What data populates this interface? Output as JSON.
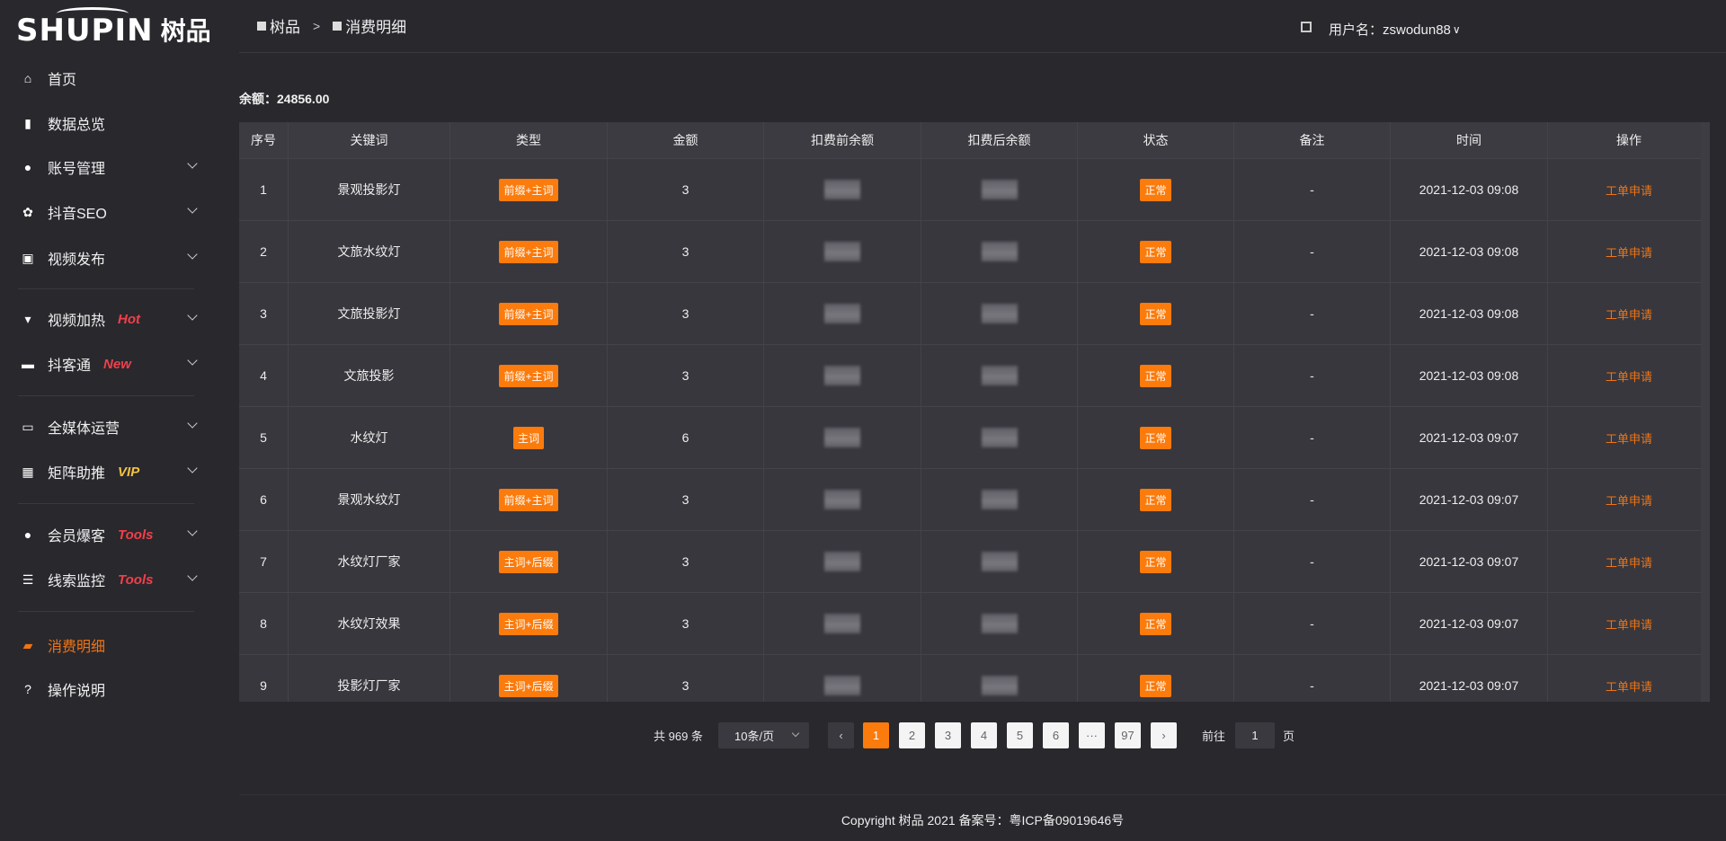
{
  "brand": {
    "logo_en": "SHUPIN",
    "logo_cn": "树品"
  },
  "sidebar": {
    "items": [
      {
        "label": "首页",
        "icon": "home-icon"
      },
      {
        "label": "数据总览",
        "icon": "bar-chart-icon"
      },
      {
        "label": "账号管理",
        "icon": "user-icon"
      },
      {
        "label": "抖音SEO",
        "icon": "gear-icon"
      },
      {
        "label": "视频发布",
        "icon": "camera-icon"
      },
      {
        "label": "视频加热",
        "icon": "flag-icon",
        "tag": "Hot"
      },
      {
        "label": "抖客通",
        "icon": "chat-icon",
        "tag": "New"
      },
      {
        "label": "全媒体运营",
        "icon": "monitor-icon"
      },
      {
        "label": "矩阵助推",
        "icon": "grid-icon",
        "tag": "VIP"
      },
      {
        "label": "会员爆客",
        "icon": "user-icon",
        "tag": "Tools"
      },
      {
        "label": "线索监控",
        "icon": "sliders-icon",
        "tag": "Tools"
      },
      {
        "label": "消费明细",
        "icon": "wallet-icon"
      },
      {
        "label": "操作说明",
        "icon": "question-icon"
      }
    ],
    "active": "消费明细"
  },
  "header": {
    "breadcrumb": [
      "树品",
      "消费明细"
    ],
    "sep": ">",
    "user": "用户名：zswodun88"
  },
  "balance": "余额：24856.00",
  "table": {
    "columns": [
      "序号",
      "关键词",
      "类型",
      "金额",
      "扣费前余额",
      "扣费后余额",
      "状态",
      "备注",
      "时间",
      "操作"
    ],
    "rows": [
      {
        "no": "1",
        "kw": "景观投影灯",
        "type": "前缀+主词",
        "amt": "3",
        "status": "正常",
        "note": "-",
        "time": "2021-12-03 09:08",
        "op": "工单申请"
      },
      {
        "no": "2",
        "kw": "文旅水纹灯",
        "type": "前缀+主词",
        "amt": "3",
        "status": "正常",
        "note": "-",
        "time": "2021-12-03 09:08",
        "op": "工单申请"
      },
      {
        "no": "3",
        "kw": "文旅投影灯",
        "type": "前缀+主词",
        "amt": "3",
        "status": "正常",
        "note": "-",
        "time": "2021-12-03 09:08",
        "op": "工单申请"
      },
      {
        "no": "4",
        "kw": "文旅投影",
        "type": "前缀+主词",
        "amt": "3",
        "status": "正常",
        "note": "-",
        "time": "2021-12-03 09:08",
        "op": "工单申请"
      },
      {
        "no": "5",
        "kw": "水纹灯",
        "type": "主词",
        "amt": "6",
        "status": "正常",
        "note": "-",
        "time": "2021-12-03 09:07",
        "op": "工单申请"
      },
      {
        "no": "6",
        "kw": "景观水纹灯",
        "type": "前缀+主词",
        "amt": "3",
        "status": "正常",
        "note": "-",
        "time": "2021-12-03 09:07",
        "op": "工单申请"
      },
      {
        "no": "7",
        "kw": "水纹灯厂家",
        "type": "主词+后缀",
        "amt": "3",
        "status": "正常",
        "note": "-",
        "time": "2021-12-03 09:07",
        "op": "工单申请"
      },
      {
        "no": "8",
        "kw": "水纹灯效果",
        "type": "主词+后缀",
        "amt": "3",
        "status": "正常",
        "note": "-",
        "time": "2021-12-03 09:07",
        "op": "工单申请"
      },
      {
        "no": "9",
        "kw": "投影灯厂家",
        "type": "主词+后缀",
        "amt": "3",
        "status": "正常",
        "note": "-",
        "time": "2021-12-03 09:07",
        "op": "工单申请"
      }
    ]
  },
  "pagination": {
    "total": "共 969 条",
    "page_size": "10条/页",
    "pages": [
      "1",
      "2",
      "3",
      "4",
      "5",
      "6",
      "···",
      "97"
    ],
    "current": "1",
    "goto_label": "前往",
    "goto_value": "1",
    "goto_suffix": "页"
  },
  "footer": "Copyright 树品 2021 备案号：粤ICP备09019646号",
  "colors": {
    "accent": "#fb7b0c",
    "hot": "#f0404a",
    "vip": "#f5c242",
    "bg": "#29282d",
    "table": "#38373d"
  }
}
